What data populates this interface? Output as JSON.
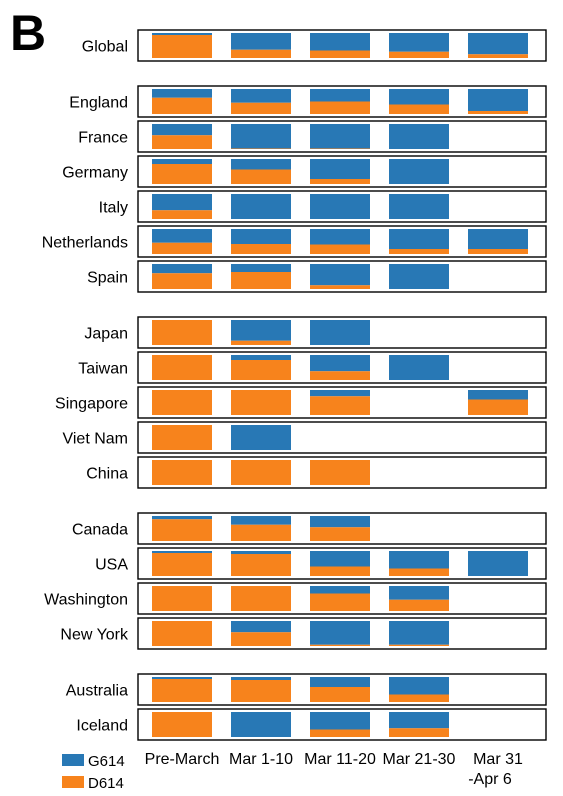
{
  "panel_label": "B",
  "chart_data": {
    "type": "bar",
    "subtype": "100%-stacked, one row per region",
    "categories": [
      "Pre-March",
      "Mar 1-10",
      "Mar 11-20",
      "Mar 21-30",
      "Mar 31\n-Apr 6"
    ],
    "series": [
      {
        "name": "G614",
        "color": "#2878b5"
      },
      {
        "name": "D614",
        "color": "#f7831c"
      }
    ],
    "legend": {
      "position": "bottom-left",
      "entries": [
        "G614",
        "D614"
      ]
    },
    "groups": [
      {
        "rows": [
          {
            "region": "Global",
            "d614_fraction": [
              0.92,
              0.33,
              0.3,
              0.25,
              0.15
            ]
          }
        ]
      },
      {
        "rows": [
          {
            "region": "England",
            "d614_fraction": [
              0.65,
              0.45,
              0.5,
              0.38,
              0.12
            ]
          },
          {
            "region": "France",
            "d614_fraction": [
              0.55,
              0.02,
              0.02,
              0.0,
              null
            ]
          },
          {
            "region": "Germany",
            "d614_fraction": [
              0.8,
              0.58,
              0.2,
              0.0,
              null
            ]
          },
          {
            "region": "Italy",
            "d614_fraction": [
              0.35,
              0.0,
              0.0,
              0.0,
              null
            ]
          },
          {
            "region": "Netherlands",
            "d614_fraction": [
              0.45,
              0.4,
              0.38,
              0.2,
              0.2
            ]
          },
          {
            "region": "Spain",
            "d614_fraction": [
              0.63,
              0.68,
              0.15,
              0.0,
              null
            ]
          }
        ]
      },
      {
        "rows": [
          {
            "region": "Japan",
            "d614_fraction": [
              1.0,
              0.17,
              0.0,
              null,
              null
            ]
          },
          {
            "region": "Taiwan",
            "d614_fraction": [
              1.0,
              0.8,
              0.35,
              0.0,
              null
            ]
          },
          {
            "region": "Singapore",
            "d614_fraction": [
              1.0,
              1.0,
              0.75,
              null,
              0.62
            ]
          },
          {
            "region": "Viet Nam",
            "d614_fraction": [
              1.0,
              0.0,
              null,
              null,
              null
            ]
          },
          {
            "region": "China",
            "d614_fraction": [
              1.0,
              1.0,
              1.0,
              null,
              null
            ]
          }
        ]
      },
      {
        "rows": [
          {
            "region": "Canada",
            "d614_fraction": [
              0.87,
              0.65,
              0.55,
              null,
              null
            ]
          },
          {
            "region": "USA",
            "d614_fraction": [
              0.92,
              0.88,
              0.38,
              0.3,
              0.0
            ]
          },
          {
            "region": "Washington",
            "d614_fraction": [
              1.0,
              1.0,
              0.7,
              0.45,
              null
            ]
          },
          {
            "region": "New York",
            "d614_fraction": [
              1.0,
              0.55,
              0.05,
              0.05,
              null
            ]
          }
        ]
      },
      {
        "rows": [
          {
            "region": "Australia",
            "d614_fraction": [
              0.92,
              0.88,
              0.6,
              0.3,
              null
            ]
          },
          {
            "region": "Iceland",
            "d614_fraction": [
              1.0,
              0.0,
              0.3,
              0.35,
              null
            ]
          }
        ]
      }
    ]
  }
}
